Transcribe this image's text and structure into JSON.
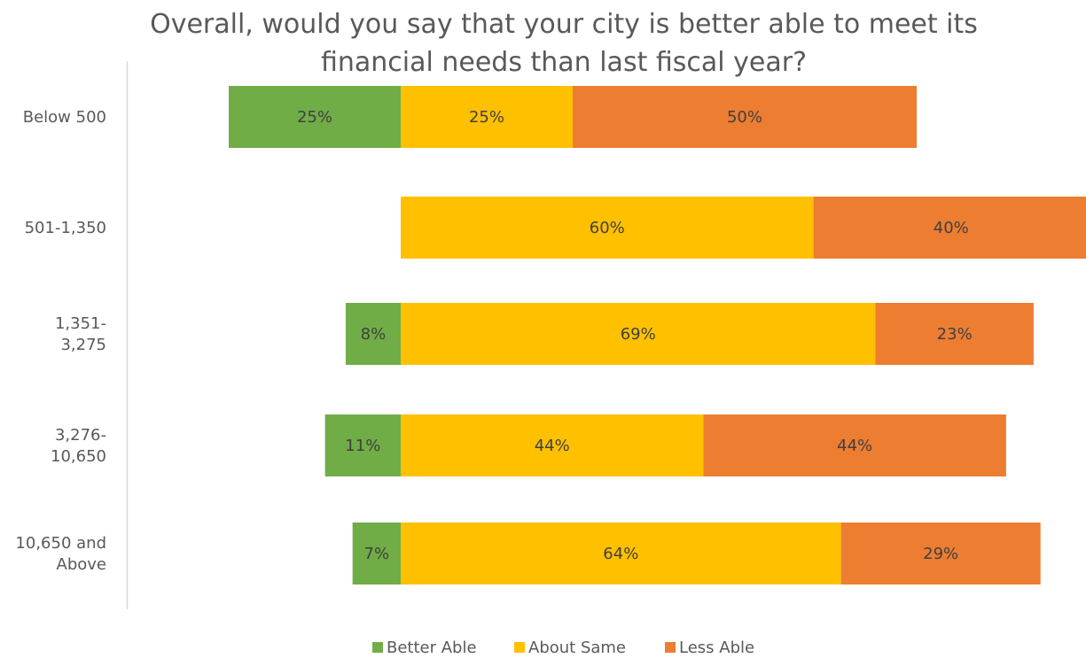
{
  "chart_data": {
    "type": "bar",
    "orientation": "horizontal",
    "stacking": "diverging",
    "title_lines": [
      "Overall, would you say that your city is better able to meet its",
      "financial needs than last fiscal year?"
    ],
    "categories": [
      [
        "Below 500"
      ],
      [
        "501-1,350"
      ],
      [
        "1,351-",
        "3,275"
      ],
      [
        "3,276-",
        "10,650"
      ],
      [
        "10,650 and",
        "Above"
      ]
    ],
    "series": [
      {
        "name": "Better Able",
        "color": "#70AD47",
        "side": "left",
        "values": [
          25,
          0,
          8,
          11,
          7
        ],
        "labels": [
          "25%",
          "",
          "8%",
          "11%",
          "7%"
        ]
      },
      {
        "name": "About Same",
        "color": "#FFC000",
        "side": "right",
        "values": [
          25,
          60,
          69,
          44,
          64
        ],
        "labels": [
          "25%",
          "60%",
          "69%",
          "44%",
          "64%"
        ]
      },
      {
        "name": "Less Able",
        "color": "#ED7D31",
        "side": "right",
        "values": [
          50,
          40,
          23,
          44,
          29
        ],
        "labels": [
          "50%",
          "40%",
          "23%",
          "44%",
          "29%"
        ]
      }
    ],
    "xlim": [
      -25,
      100
    ],
    "grid": false,
    "legend": "bottom",
    "axis_color": "#D9D9D9"
  }
}
